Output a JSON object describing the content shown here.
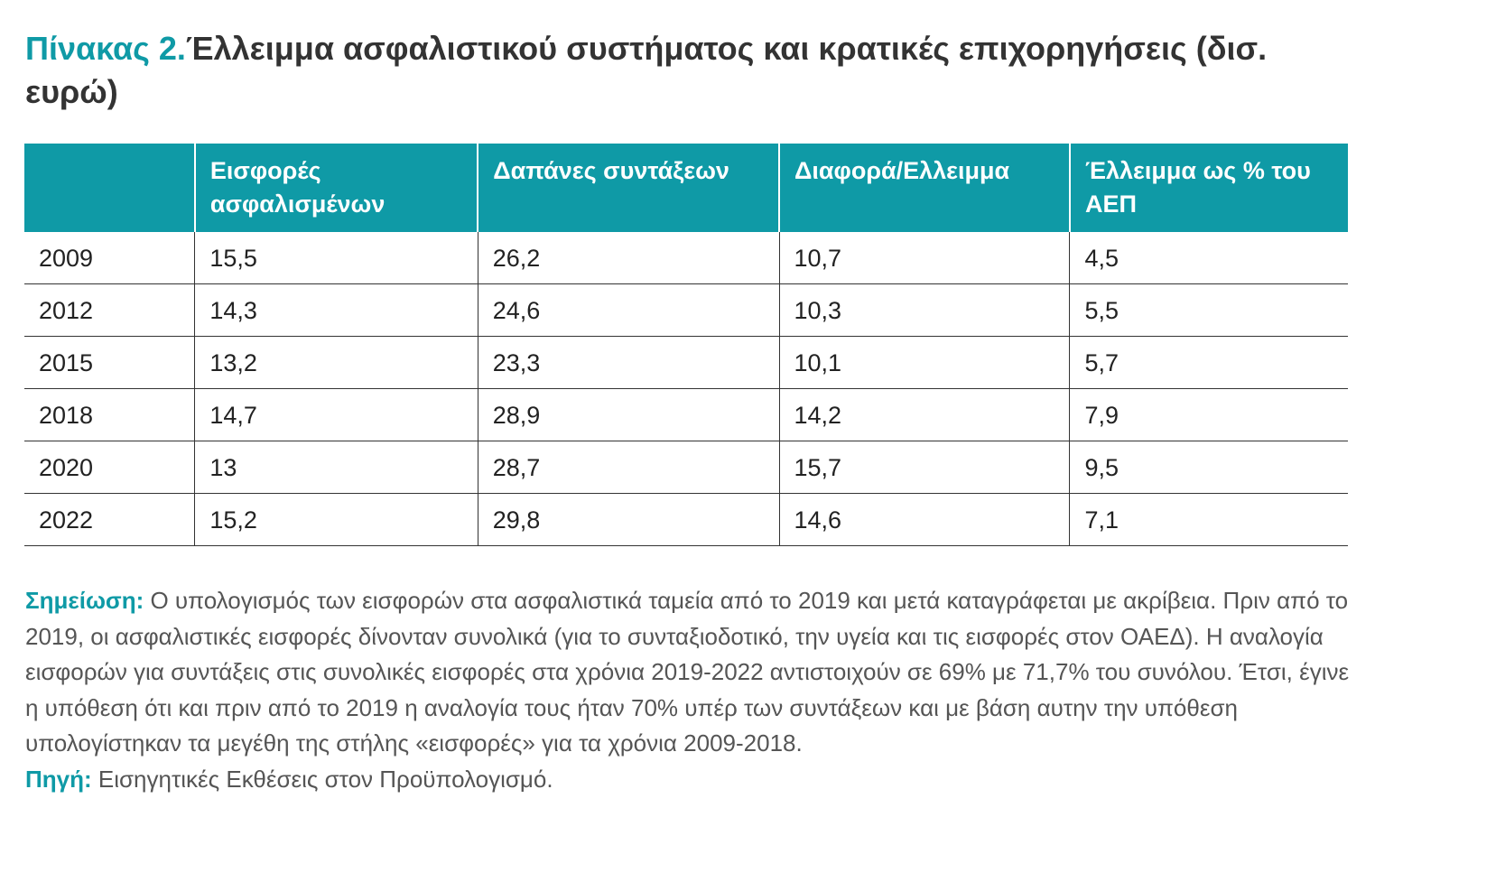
{
  "title": {
    "lead": "Πίνακας 2.",
    "text": "Έλλειμμα ασφαλιστικού συστήματος και κρατικές επιχορηγήσεις (δισ. ευρώ)"
  },
  "table": {
    "headers": [
      "",
      "Εισφορές ασφαλισμένων",
      "Δαπάνες συντάξεων",
      "Διαφορά/Ελλειμμα",
      "Έλλειμμα ως % του ΑΕΠ"
    ],
    "rows": [
      [
        "2009",
        "15,5",
        "26,2",
        "10,7",
        "4,5"
      ],
      [
        "2012",
        "14,3",
        "24,6",
        "10,3",
        "5,5"
      ],
      [
        "2015",
        "13,2",
        "23,3",
        "10,1",
        "5,7"
      ],
      [
        "2018",
        "14,7",
        "28,9",
        "14,2",
        "7,9"
      ],
      [
        "2020",
        "13",
        "28,7",
        "15,7",
        "9,5"
      ],
      [
        "2022",
        "15,2",
        "29,8",
        "14,6",
        "7,1"
      ]
    ]
  },
  "note": {
    "label": "Σημείωση:",
    "text": " Ο υπολογισμός των εισφορών στα ασφαλιστικά ταμεία από το 2019 και μετά καταγράφεται με ακρίβεια. Πριν από το 2019, οι ασφαλιστικές εισφορές δίνονταν συνολικά (για το συνταξιοδοτικό, την υγεία και τις εισφορές στον ΟΑΕΔ). Η αναλογία εισφορών για συντάξεις στις συνολικές εισφορές στα χρόνια 2019-2022 αντιστοιχούν σε 69% με 71,7% του συνόλου. Έτσι, έγινε η υπόθεση ότι και πριν από το 2019 η αναλογία τους ήταν 70% υπέρ των συντάξεων και με βάση αυτην την υπόθεση υπολογίστηκαν τα μεγέθη της στήλης «εισφορές» για τα χρόνια 2009-2018."
  },
  "source": {
    "label": "Πηγή:",
    "text": " Εισηγητικές Εκθέσεις στον Προϋπολογισμό."
  },
  "colors": {
    "accent": "#0f9aa6",
    "header_text": "#ffffff",
    "body_text": "#222222",
    "note_text": "#555555"
  }
}
